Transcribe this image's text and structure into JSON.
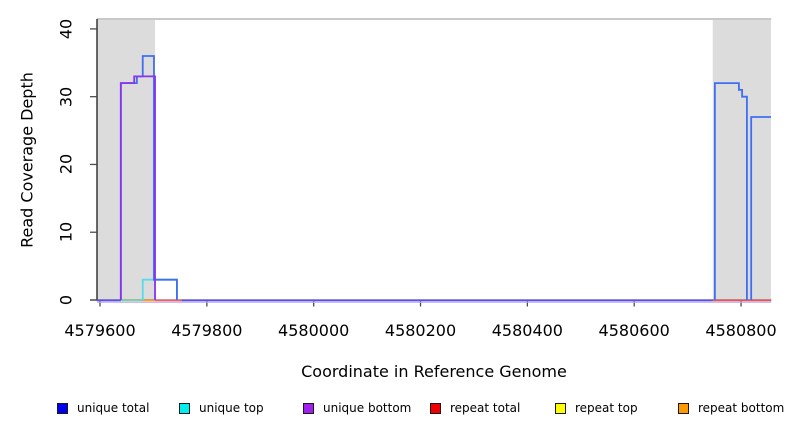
{
  "chart_data": {
    "type": "line",
    "title": "",
    "xlabel": "Coordinate in Reference Genome",
    "ylabel": "Read Coverage Depth",
    "xlim": [
      4579594,
      4580856
    ],
    "ylim": [
      0,
      41.3
    ],
    "grid": false,
    "legend_position": "bottom",
    "xticks": [
      {
        "v": 4579600,
        "label": "4579600"
      },
      {
        "v": 4579800,
        "label": "4579800"
      },
      {
        "v": 4580000,
        "label": "4580000"
      },
      {
        "v": 4580200,
        "label": "4580200"
      },
      {
        "v": 4580400,
        "label": "4580400"
      },
      {
        "v": 4580600,
        "label": "4580600"
      },
      {
        "v": 4580800,
        "label": "4580800"
      }
    ],
    "yticks": [
      {
        "v": 0,
        "label": "0"
      },
      {
        "v": 10,
        "label": "10"
      },
      {
        "v": 20,
        "label": "20"
      },
      {
        "v": 30,
        "label": "30"
      },
      {
        "v": 40,
        "label": "40"
      }
    ],
    "shaded_regions": [
      {
        "x1": 4579594,
        "x2": 4579703
      },
      {
        "x1": 4580747,
        "x2": 4580856
      }
    ],
    "series": [
      {
        "name": "unique total",
        "color": "#3f6ef2",
        "z": 2,
        "segments": [
          [
            [
              4579639,
              0
            ],
            [
              4579639,
              32
            ],
            [
              4579669,
              32
            ],
            [
              4579669,
              33
            ],
            [
              4579680,
              33
            ],
            [
              4579680,
              36
            ],
            [
              4579701,
              36
            ],
            [
              4579701,
              3
            ],
            [
              4579744,
              3
            ],
            [
              4579744,
              0
            ]
          ],
          [
            [
              4580751,
              0
            ],
            [
              4580751,
              32
            ],
            [
              4580796,
              32
            ],
            [
              4580796,
              31
            ],
            [
              4580802,
              31
            ],
            [
              4580802,
              30
            ],
            [
              4580811,
              30
            ],
            [
              4580811,
              0
            ]
          ],
          [
            [
              4580819,
              0
            ],
            [
              4580819,
              27
            ],
            [
              4580856,
              27
            ]
          ]
        ]
      },
      {
        "name": "unique top",
        "color": "#55dce8",
        "z": 1,
        "segments": [
          [
            [
              4579680,
              0
            ],
            [
              4579680,
              3
            ],
            [
              4579744,
              3
            ],
            [
              4579744,
              0
            ]
          ]
        ]
      },
      {
        "name": "unique bottom",
        "color": "#8833ee",
        "z": 3,
        "segments": [
          [
            [
              4579639,
              0
            ],
            [
              4579639,
              32
            ],
            [
              4579664,
              32
            ],
            [
              4579664,
              33
            ],
            [
              4579703,
              33
            ],
            [
              4579703,
              0
            ]
          ]
        ]
      },
      {
        "name": "repeat total",
        "color": "#ee0000",
        "z": 0,
        "segments": []
      },
      {
        "name": "repeat top",
        "color": "#ffff00",
        "z": 0,
        "segments": []
      },
      {
        "name": "repeat bottom",
        "color": "#ff9900",
        "z": 0,
        "segments": []
      }
    ],
    "baseline_segments": [
      {
        "x1": 4579594,
        "x2": 4579639,
        "color": "#5a50e8"
      },
      {
        "x1": 4579639,
        "x2": 4579680,
        "color": "#7cd4a0"
      },
      {
        "x1": 4579680,
        "x2": 4579703,
        "color": "#ffa020"
      },
      {
        "x1": 4579703,
        "x2": 4579753,
        "color": "#f06060"
      },
      {
        "x1": 4579753,
        "x2": 4580747,
        "color": "#5a50e8"
      },
      {
        "x1": 4580747,
        "x2": 4580856,
        "color": "#e85555"
      }
    ],
    "baseline_underline_color": "#b7a6f7",
    "colors": {
      "shade": "#dcdcdc",
      "axis": "#1a1a1a",
      "box_top": "#a6a6a6",
      "tick": "#4d4d4d"
    }
  },
  "legend": {
    "items": [
      {
        "label": "unique total",
        "color": "#0000ee"
      },
      {
        "label": "unique top",
        "color": "#00eeee"
      },
      {
        "label": "unique bottom",
        "color": "#a020f0"
      },
      {
        "label": "repeat total",
        "color": "#ee0000"
      },
      {
        "label": "repeat top",
        "color": "#ffff00"
      },
      {
        "label": "repeat bottom",
        "color": "#ff9900"
      }
    ]
  }
}
